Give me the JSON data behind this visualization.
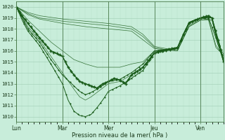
{
  "xlabel": "Pression niveau de la mer( hPa )",
  "xtick_labels": [
    "Lun",
    "Mar",
    "Mer",
    "Jeu",
    "Ven"
  ],
  "xtick_positions": [
    0,
    48,
    96,
    144,
    192
  ],
  "ylim": [
    1009.5,
    1020.5
  ],
  "yticks": [
    1010,
    1011,
    1012,
    1013,
    1014,
    1015,
    1016,
    1017,
    1018,
    1019,
    1020
  ],
  "bg_color": "#c8edda",
  "grid_color_major": "#a8d4bc",
  "grid_color_minor": "#b8e0c8",
  "line_color": "#1a5c1a",
  "figsize": [
    3.2,
    2.0
  ],
  "dpi": 100,
  "xlim": [
    0,
    216
  ]
}
